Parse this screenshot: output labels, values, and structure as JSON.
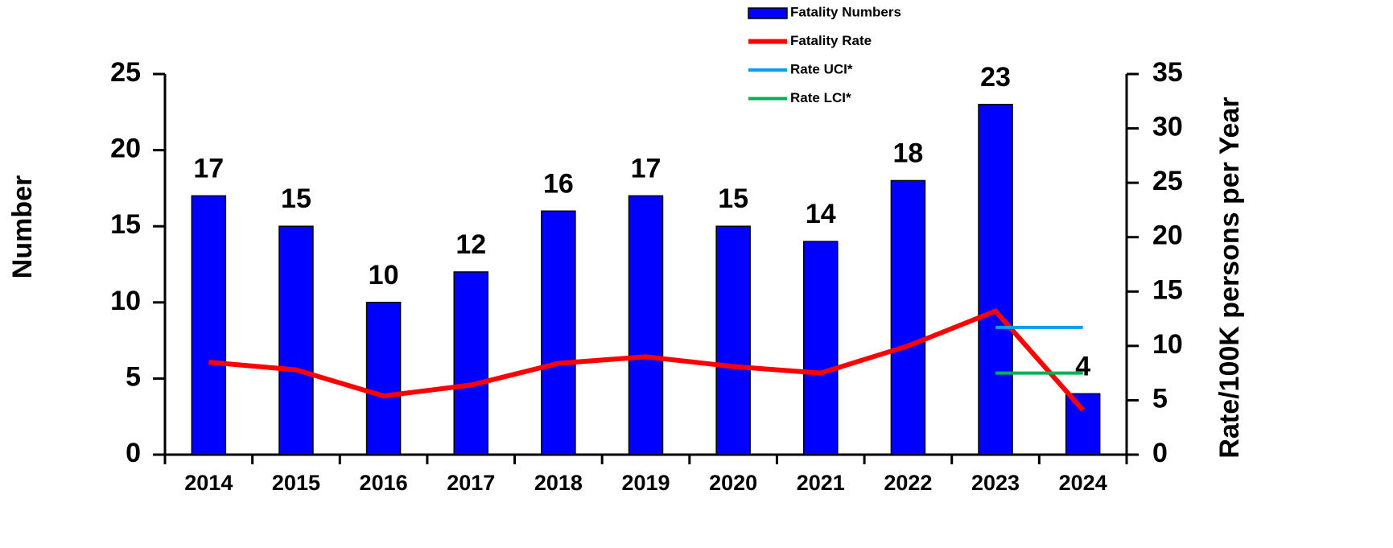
{
  "chart_data": {
    "type": "bar",
    "categories": [
      "2014",
      "2015",
      "2016",
      "2017",
      "2018",
      "2019",
      "2020",
      "2021",
      "2022",
      "2023",
      "2024"
    ],
    "series": [
      {
        "name": "Fatality Numbers",
        "color": "#0000ff",
        "values": [
          17,
          15,
          10,
          12,
          16,
          17,
          15,
          14,
          18,
          23,
          4
        ]
      },
      {
        "name": "Fatality Rate",
        "color": "#ff0000",
        "axis": "y2",
        "values": [
          8.5,
          7.8,
          5.4,
          6.4,
          8.4,
          9.0,
          8.1,
          7.5,
          10.0,
          13.2,
          4.1
        ]
      },
      {
        "name": "Rate UCI*",
        "color": "#00a0f0",
        "axis": "y2",
        "values": [
          null,
          null,
          null,
          null,
          null,
          null,
          null,
          null,
          null,
          11.7,
          11.7
        ]
      },
      {
        "name": "Rate LCI*",
        "color": "#00b050",
        "axis": "y2",
        "values": [
          null,
          null,
          null,
          null,
          null,
          null,
          null,
          null,
          null,
          7.5,
          7.5
        ]
      }
    ],
    "ylabel": "Number",
    "y2label": "Rate/100K persons per Year",
    "ylim": [
      0,
      25
    ],
    "yticks": [
      0,
      5,
      10,
      15,
      20,
      25
    ],
    "y2lim": [
      0,
      35
    ],
    "y2ticks": [
      0,
      5,
      10,
      15,
      20,
      25,
      30,
      35
    ]
  }
}
